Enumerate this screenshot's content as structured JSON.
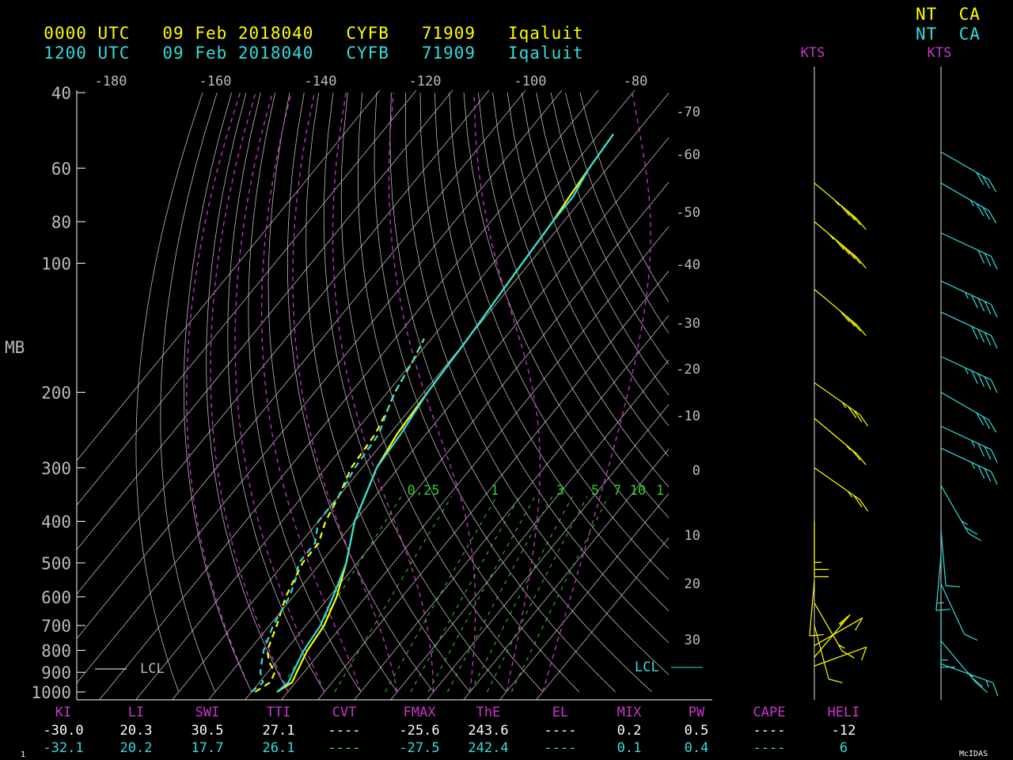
{
  "header": {
    "row1": {
      "time": "0000 UTC",
      "date": "09 Feb 2018040",
      "station": "CYFB",
      "wmo": "71909",
      "name": "Iqaluit",
      "state": "NT",
      "country": "CA"
    },
    "row2": {
      "time": "1200 UTC",
      "date": "09 Feb 2018040",
      "station": "CYFB",
      "wmo": "71909",
      "name": "Iqaluit",
      "state": "NT",
      "country": "CA"
    }
  },
  "colors": {
    "run1": "#ffff00",
    "run2": "#33dddd",
    "magenta": "#cc33cc",
    "green": "#33cc33",
    "grid": "#bbbbbb",
    "white": "#ffffff"
  },
  "chart_data": {
    "type": "line",
    "ylabel": "MB",
    "pressure_ticks": [
      "40",
      "60",
      "80",
      "100",
      "200",
      "300",
      "400",
      "500",
      "600",
      "700",
      "800",
      "900",
      "1000"
    ],
    "theta_top_labels": [
      "-180",
      "-160",
      "-140",
      "-120",
      "-100",
      "-80"
    ],
    "temp_right_labels": [
      "-70",
      "-60",
      "-50",
      "-40",
      "-30",
      "-20",
      "-10",
      "0",
      "10",
      "20",
      "30"
    ],
    "mixing_ratio_labels": [
      "0.25",
      "1",
      "3",
      "5",
      "7",
      "10",
      "1"
    ],
    "lcl_label": "LCL",
    "wind_unit_label": "KTS",
    "series": [
      {
        "name": "0000 UTC",
        "temperature": [
          [
            1000,
            -33
          ],
          [
            950,
            -31
          ],
          [
            900,
            -32
          ],
          [
            850,
            -33
          ],
          [
            800,
            -34
          ],
          [
            700,
            -35
          ],
          [
            600,
            -38
          ],
          [
            500,
            -43
          ],
          [
            400,
            -50
          ],
          [
            300,
            -56
          ],
          [
            250,
            -58
          ],
          [
            200,
            -59
          ],
          [
            150,
            -60
          ],
          [
            100,
            -62
          ],
          [
            80,
            -63
          ],
          [
            70,
            -64
          ],
          [
            60,
            -65
          ],
          [
            50,
            -66
          ]
        ],
        "dewpoint": [
          [
            1000,
            -39
          ],
          [
            950,
            -37
          ],
          [
            900,
            -38
          ],
          [
            850,
            -42
          ],
          [
            800,
            -45
          ],
          [
            700,
            -48
          ],
          [
            600,
            -52
          ],
          [
            500,
            -55
          ],
          [
            450,
            -55
          ],
          [
            400,
            -58
          ],
          [
            350,
            -60
          ],
          [
            300,
            -63
          ],
          [
            250,
            -64
          ],
          [
            220,
            -66
          ],
          [
            200,
            -68
          ],
          [
            170,
            -70
          ],
          [
            150,
            -72
          ]
        ]
      },
      {
        "name": "1200 UTC",
        "temperature": [
          [
            1000,
            -33
          ],
          [
            950,
            -32
          ],
          [
            900,
            -33
          ],
          [
            850,
            -34
          ],
          [
            800,
            -35
          ],
          [
            700,
            -36
          ],
          [
            600,
            -39
          ],
          [
            500,
            -43
          ],
          [
            400,
            -50
          ],
          [
            300,
            -56
          ],
          [
            250,
            -57
          ],
          [
            200,
            -59
          ],
          [
            150,
            -60
          ],
          [
            100,
            -62
          ],
          [
            80,
            -63
          ],
          [
            70,
            -63
          ],
          [
            60,
            -65
          ],
          [
            50,
            -66
          ]
        ],
        "dewpoint": [
          [
            1000,
            -40
          ],
          [
            950,
            -39
          ],
          [
            900,
            -42
          ],
          [
            850,
            -44
          ],
          [
            800,
            -46
          ],
          [
            700,
            -49
          ],
          [
            600,
            -51
          ],
          [
            550,
            -53
          ],
          [
            500,
            -56
          ],
          [
            450,
            -56
          ],
          [
            400,
            -60
          ],
          [
            350,
            -60
          ],
          [
            300,
            -62
          ],
          [
            250,
            -63
          ],
          [
            220,
            -66
          ],
          [
            200,
            -68
          ],
          [
            170,
            -70
          ],
          [
            150,
            -72
          ]
        ]
      }
    ],
    "wind_series": [
      {
        "name": "0000 UTC",
        "barbs": [
          [
            65,
            230,
            35
          ],
          [
            80,
            230,
            45
          ],
          [
            115,
            230,
            40
          ],
          [
            190,
            235,
            25
          ],
          [
            230,
            230,
            15
          ],
          [
            300,
            235,
            15
          ],
          [
            400,
            180,
            15
          ],
          [
            550,
            175,
            10
          ],
          [
            620,
            210,
            5
          ],
          [
            700,
            195,
            10
          ],
          [
            780,
            300,
            10
          ],
          [
            830,
            320,
            5
          ],
          [
            870,
            290,
            10
          ]
        ]
      },
      {
        "name": "1200 UTC",
        "barbs": [
          [
            55,
            240,
            30
          ],
          [
            65,
            240,
            25
          ],
          [
            85,
            245,
            30
          ],
          [
            110,
            245,
            35
          ],
          [
            130,
            245,
            40
          ],
          [
            165,
            245,
            35
          ],
          [
            200,
            240,
            30
          ],
          [
            240,
            245,
            25
          ],
          [
            270,
            245,
            25
          ],
          [
            330,
            210,
            15
          ],
          [
            420,
            185,
            10
          ],
          [
            480,
            175,
            5
          ],
          [
            560,
            205,
            10
          ],
          [
            650,
            180,
            5
          ],
          [
            760,
            220,
            15
          ],
          [
            860,
            250,
            5
          ]
        ]
      }
    ],
    "indices": {
      "labels": [
        "KI",
        "LI",
        "SWI",
        "TTI",
        "CVT",
        "FMAX",
        "ThE",
        "EL",
        "MIX",
        "PW",
        "CAPE",
        "HELI"
      ],
      "run1": [
        "-30.0",
        "20.3",
        "30.5",
        "27.1",
        "----",
        "-25.6",
        "243.6",
        "----",
        "0.2",
        "0.5",
        "----",
        "-12"
      ],
      "run2": [
        "-32.1",
        "20.2",
        "17.7",
        "26.1",
        "----",
        "-27.5",
        "242.4",
        "----",
        "0.1",
        "0.4",
        "----",
        "6"
      ]
    }
  },
  "footer": {
    "left": "1",
    "right": "McIDAS"
  }
}
